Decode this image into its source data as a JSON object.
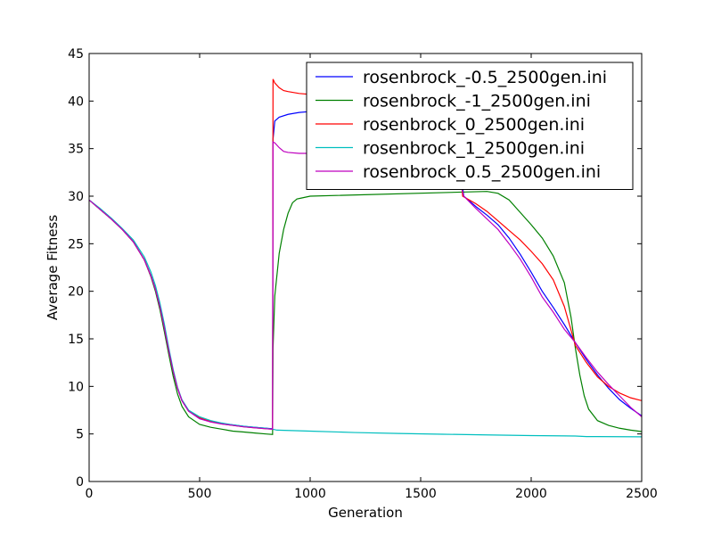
{
  "chart_data": {
    "type": "line",
    "xlabel": "Generation",
    "ylabel": "Average Fitness",
    "xlim": [
      0,
      2500
    ],
    "ylim": [
      0,
      45
    ],
    "xticks": [
      "0",
      "500",
      "1000",
      "1500",
      "2000",
      "2500"
    ],
    "yticks": [
      "0",
      "5",
      "10",
      "15",
      "20",
      "25",
      "30",
      "35",
      "40",
      "45"
    ],
    "grid": false,
    "legend_position": "upper-right",
    "series": [
      {
        "name": "rosenbrock_-0.5_2500gen.ini",
        "color": "#0000ff",
        "points": [
          [
            0,
            29.6
          ],
          [
            50,
            28.6
          ],
          [
            100,
            27.6
          ],
          [
            150,
            26.5
          ],
          [
            200,
            25.2
          ],
          [
            250,
            23.3
          ],
          [
            280,
            21.6
          ],
          [
            300,
            20.2
          ],
          [
            320,
            18.4
          ],
          [
            340,
            16.2
          ],
          [
            360,
            13.8
          ],
          [
            380,
            11.6
          ],
          [
            400,
            9.8
          ],
          [
            420,
            8.5
          ],
          [
            450,
            7.4
          ],
          [
            500,
            6.6
          ],
          [
            550,
            6.3
          ],
          [
            600,
            6.1
          ],
          [
            650,
            5.95
          ],
          [
            700,
            5.8
          ],
          [
            750,
            5.7
          ],
          [
            800,
            5.6
          ],
          [
            830,
            5.55
          ],
          [
            832,
            36.0
          ],
          [
            840,
            37.9
          ],
          [
            860,
            38.3
          ],
          [
            900,
            38.6
          ],
          [
            950,
            38.8
          ],
          [
            1000,
            38.9
          ],
          [
            1100,
            39.0
          ],
          [
            1200,
            39.0
          ],
          [
            1500,
            38.8
          ],
          [
            1650,
            38.6
          ],
          [
            1695,
            30.0
          ],
          [
            1750,
            28.9
          ],
          [
            1800,
            28.0
          ],
          [
            1850,
            27.0
          ],
          [
            1900,
            25.6
          ],
          [
            1950,
            23.9
          ],
          [
            2000,
            22.0
          ],
          [
            2050,
            20.0
          ],
          [
            2100,
            18.3
          ],
          [
            2150,
            16.5
          ],
          [
            2200,
            14.6
          ],
          [
            2250,
            12.8
          ],
          [
            2300,
            11.2
          ],
          [
            2350,
            9.8
          ],
          [
            2400,
            8.6
          ],
          [
            2450,
            7.7
          ],
          [
            2500,
            6.9
          ]
        ]
      },
      {
        "name": "rosenbrock_-1_2500gen.ini",
        "color": "#008000",
        "points": [
          [
            0,
            29.6
          ],
          [
            50,
            28.6
          ],
          [
            100,
            27.6
          ],
          [
            150,
            26.5
          ],
          [
            200,
            25.2
          ],
          [
            250,
            23.3
          ],
          [
            280,
            21.5
          ],
          [
            300,
            20.0
          ],
          [
            320,
            18.1
          ],
          [
            340,
            15.8
          ],
          [
            360,
            13.4
          ],
          [
            380,
            11.1
          ],
          [
            400,
            9.2
          ],
          [
            420,
            7.9
          ],
          [
            450,
            6.8
          ],
          [
            500,
            6.0
          ],
          [
            550,
            5.7
          ],
          [
            600,
            5.5
          ],
          [
            650,
            5.3
          ],
          [
            700,
            5.2
          ],
          [
            750,
            5.1
          ],
          [
            800,
            5.0
          ],
          [
            830,
            4.95
          ],
          [
            832,
            14.0
          ],
          [
            840,
            19.5
          ],
          [
            860,
            24.0
          ],
          [
            880,
            26.5
          ],
          [
            900,
            28.2
          ],
          [
            920,
            29.3
          ],
          [
            940,
            29.7
          ],
          [
            960,
            29.8
          ],
          [
            1000,
            30.0
          ],
          [
            1800,
            30.5
          ],
          [
            1850,
            30.3
          ],
          [
            1900,
            29.6
          ],
          [
            1950,
            28.3
          ],
          [
            2000,
            27.0
          ],
          [
            2050,
            25.6
          ],
          [
            2100,
            23.7
          ],
          [
            2150,
            20.9
          ],
          [
            2180,
            17.3
          ],
          [
            2200,
            14.0
          ],
          [
            2220,
            11.2
          ],
          [
            2240,
            9.0
          ],
          [
            2260,
            7.6
          ],
          [
            2300,
            6.4
          ],
          [
            2350,
            5.9
          ],
          [
            2400,
            5.6
          ],
          [
            2450,
            5.4
          ],
          [
            2500,
            5.25
          ]
        ]
      },
      {
        "name": "rosenbrock_0_2500gen.ini",
        "color": "#ff0000",
        "points": [
          [
            0,
            29.6
          ],
          [
            50,
            28.6
          ],
          [
            100,
            27.6
          ],
          [
            150,
            26.5
          ],
          [
            200,
            25.2
          ],
          [
            250,
            23.3
          ],
          [
            280,
            21.6
          ],
          [
            300,
            20.2
          ],
          [
            320,
            18.4
          ],
          [
            340,
            16.2
          ],
          [
            360,
            13.8
          ],
          [
            380,
            11.6
          ],
          [
            400,
            9.8
          ],
          [
            420,
            8.5
          ],
          [
            450,
            7.4
          ],
          [
            500,
            6.7
          ],
          [
            550,
            6.3
          ],
          [
            600,
            6.05
          ],
          [
            650,
            5.9
          ],
          [
            700,
            5.75
          ],
          [
            750,
            5.65
          ],
          [
            800,
            5.55
          ],
          [
            830,
            5.5
          ],
          [
            832,
            42.3
          ],
          [
            840,
            41.9
          ],
          [
            860,
            41.4
          ],
          [
            880,
            41.1
          ],
          [
            900,
            41.0
          ],
          [
            950,
            40.8
          ],
          [
            1000,
            40.7
          ],
          [
            1500,
            40.5
          ],
          [
            1650,
            40.3
          ],
          [
            1690,
            30.0
          ],
          [
            1750,
            29.2
          ],
          [
            1800,
            28.4
          ],
          [
            1850,
            27.4
          ],
          [
            1900,
            26.4
          ],
          [
            1950,
            25.4
          ],
          [
            2000,
            24.2
          ],
          [
            2050,
            22.9
          ],
          [
            2100,
            21.2
          ],
          [
            2150,
            18.4
          ],
          [
            2200,
            14.3
          ],
          [
            2250,
            12.5
          ],
          [
            2300,
            11.0
          ],
          [
            2350,
            10.0
          ],
          [
            2400,
            9.3
          ],
          [
            2450,
            8.8
          ],
          [
            2500,
            8.5
          ]
        ]
      },
      {
        "name": "rosenbrock_1_2500gen.ini",
        "color": "#00bfbf",
        "points": [
          [
            0,
            29.6
          ],
          [
            50,
            28.7
          ],
          [
            100,
            27.7
          ],
          [
            150,
            26.6
          ],
          [
            200,
            25.4
          ],
          [
            250,
            23.6
          ],
          [
            280,
            22.0
          ],
          [
            300,
            20.6
          ],
          [
            320,
            18.8
          ],
          [
            340,
            16.6
          ],
          [
            360,
            14.1
          ],
          [
            380,
            11.8
          ],
          [
            400,
            9.9
          ],
          [
            420,
            8.6
          ],
          [
            450,
            7.5
          ],
          [
            500,
            6.8
          ],
          [
            550,
            6.4
          ],
          [
            600,
            6.15
          ],
          [
            650,
            5.95
          ],
          [
            700,
            5.8
          ],
          [
            750,
            5.7
          ],
          [
            800,
            5.6
          ],
          [
            830,
            5.5
          ],
          [
            850,
            5.4
          ],
          [
            1000,
            5.3
          ],
          [
            1200,
            5.15
          ],
          [
            1400,
            5.05
          ],
          [
            1600,
            4.97
          ],
          [
            1800,
            4.9
          ],
          [
            2000,
            4.83
          ],
          [
            2200,
            4.78
          ],
          [
            2250,
            4.72
          ],
          [
            2300,
            4.72
          ],
          [
            2500,
            4.7
          ]
        ]
      },
      {
        "name": "rosenbrock_0.5_2500gen.ini",
        "color": "#bf00bf",
        "points": [
          [
            0,
            29.6
          ],
          [
            50,
            28.6
          ],
          [
            100,
            27.6
          ],
          [
            150,
            26.5
          ],
          [
            200,
            25.2
          ],
          [
            250,
            23.3
          ],
          [
            280,
            21.6
          ],
          [
            300,
            20.2
          ],
          [
            320,
            18.4
          ],
          [
            340,
            16.2
          ],
          [
            360,
            13.8
          ],
          [
            380,
            11.6
          ],
          [
            400,
            9.8
          ],
          [
            420,
            8.5
          ],
          [
            450,
            7.4
          ],
          [
            500,
            6.6
          ],
          [
            550,
            6.25
          ],
          [
            600,
            6.05
          ],
          [
            650,
            5.9
          ],
          [
            700,
            5.75
          ],
          [
            750,
            5.65
          ],
          [
            800,
            5.55
          ],
          [
            830,
            5.5
          ],
          [
            832,
            35.7
          ],
          [
            840,
            35.6
          ],
          [
            860,
            35.1
          ],
          [
            880,
            34.7
          ],
          [
            900,
            34.6
          ],
          [
            950,
            34.5
          ],
          [
            1000,
            34.5
          ],
          [
            1200,
            34.4
          ],
          [
            1500,
            34.3
          ],
          [
            1650,
            34.2
          ],
          [
            1695,
            30.0
          ],
          [
            1750,
            28.7
          ],
          [
            1800,
            27.6
          ],
          [
            1850,
            26.5
          ],
          [
            1900,
            25.0
          ],
          [
            1950,
            23.4
          ],
          [
            2000,
            21.5
          ],
          [
            2050,
            19.4
          ],
          [
            2100,
            17.8
          ],
          [
            2150,
            16.0
          ],
          [
            2200,
            14.6
          ],
          [
            2250,
            13.0
          ],
          [
            2300,
            11.5
          ],
          [
            2350,
            10.2
          ],
          [
            2400,
            9.0
          ],
          [
            2450,
            7.8
          ],
          [
            2500,
            6.8
          ]
        ]
      }
    ]
  }
}
